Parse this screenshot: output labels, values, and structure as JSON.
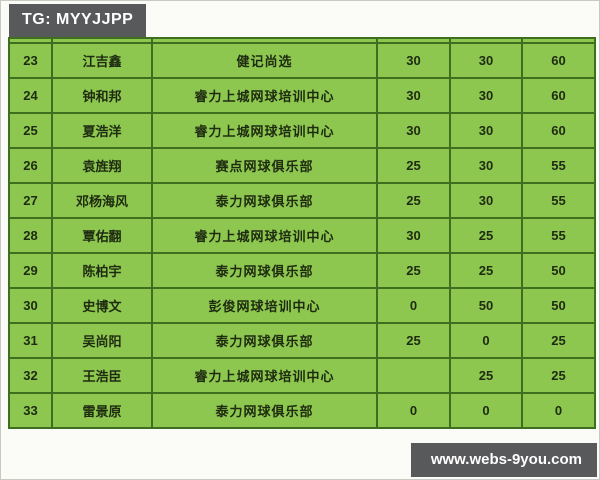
{
  "badges": {
    "top_left": "TG: MYYJJPP",
    "bottom_right": "www.webs-9you.com"
  },
  "colors": {
    "cell_green": "#8dc74f",
    "border_green": "#3d6f1f",
    "badge_gray": "#58595b",
    "badge_text": "#ffffff",
    "cell_text": "#1e2b10"
  },
  "table": {
    "columns": [
      "rank",
      "name",
      "club",
      "score1",
      "score2",
      "total"
    ],
    "rows": [
      {
        "rank": "23",
        "name": "江吉鑫",
        "club": "健记尚选",
        "score1": "30",
        "score2": "30",
        "total": "60"
      },
      {
        "rank": "24",
        "name": "钟和邦",
        "club": "睿力上城网球培训中心",
        "score1": "30",
        "score2": "30",
        "total": "60"
      },
      {
        "rank": "25",
        "name": "夏浩洋",
        "club": "睿力上城网球培训中心",
        "score1": "30",
        "score2": "30",
        "total": "60"
      },
      {
        "rank": "26",
        "name": "袁旌翔",
        "club": "赛点网球俱乐部",
        "score1": "25",
        "score2": "30",
        "total": "55"
      },
      {
        "rank": "27",
        "name": "邓杨海风",
        "club": "泰力网球俱乐部",
        "score1": "25",
        "score2": "30",
        "total": "55"
      },
      {
        "rank": "28",
        "name": "覃佑翻",
        "club": "睿力上城网球培训中心",
        "score1": "30",
        "score2": "25",
        "total": "55"
      },
      {
        "rank": "29",
        "name": "陈柏宇",
        "club": "泰力网球俱乐部",
        "score1": "25",
        "score2": "25",
        "total": "50"
      },
      {
        "rank": "30",
        "name": "史博文",
        "club": "彭俊网球培训中心",
        "score1": "0",
        "score2": "50",
        "total": "50"
      },
      {
        "rank": "31",
        "name": "吴尚阳",
        "club": "泰力网球俱乐部",
        "score1": "25",
        "score2": "0",
        "total": "25"
      },
      {
        "rank": "32",
        "name": "王浩臣",
        "club": "睿力上城网球培训中心",
        "score1": "",
        "score2": "25",
        "total": "25"
      },
      {
        "rank": "33",
        "name": "雷景原",
        "club": "泰力网球俱乐部",
        "score1": "0",
        "score2": "0",
        "total": "0"
      }
    ]
  }
}
